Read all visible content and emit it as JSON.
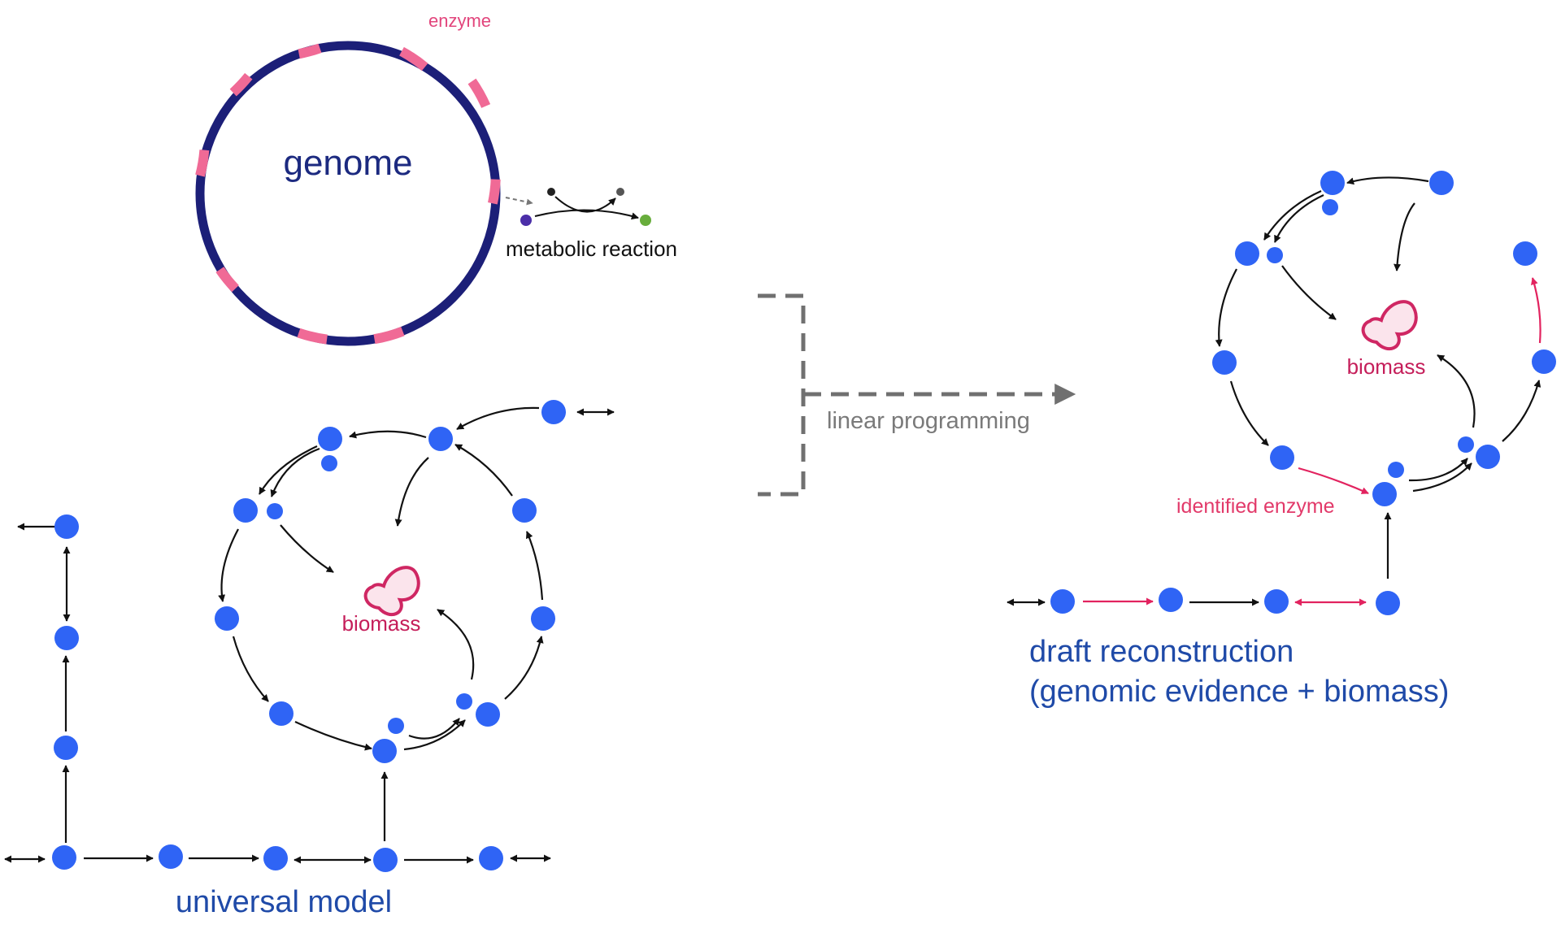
{
  "labels": {
    "genome": "genome",
    "enzyme": "enzyme",
    "metabolic_reaction": "metabolic reaction",
    "linear_programming": "linear programming",
    "biomass_left": "biomass",
    "biomass_right": "biomass",
    "identified_enzyme": "identified enzyme",
    "universal_model": "universal model",
    "draft_line1": "draft reconstruction",
    "draft_line2": "(genomic evidence + biomass)"
  },
  "colors": {
    "genome_ring": "#1c1f78",
    "enzyme_segment": "#f06a96",
    "metabolite": "#2f64f5",
    "biomass_outline": "#cf2763",
    "biomass_fill": "#fbe4ec",
    "reaction_arrow": "#111111",
    "identified_reaction_arrow": "#e2235f",
    "transform_arrow": "#707070",
    "substrate_dot": "#4b2ea8",
    "product_dot": "#68ad3c"
  },
  "icons": [
    "biomass-icon",
    "transform-arrow-icon"
  ]
}
